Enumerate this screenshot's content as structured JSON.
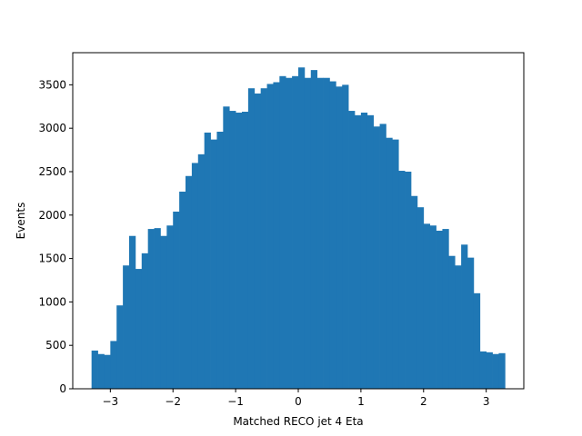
{
  "chart_data": {
    "type": "bar",
    "title": "",
    "xlabel": "Matched RECO jet 4 Eta",
    "ylabel": "Events",
    "xlim": [
      -3.6,
      3.6
    ],
    "ylim": [
      0,
      3870
    ],
    "x_range": [
      -3.3,
      3.3
    ],
    "bar_color": "#1f77b4",
    "grid": false,
    "xticks": [
      -3,
      -2,
      -1,
      0,
      1,
      2,
      3
    ],
    "xtick_labels": [
      "−3",
      "−2",
      "−1",
      "0",
      "1",
      "2",
      "3"
    ],
    "yticks": [
      0,
      500,
      1000,
      1500,
      2000,
      2500,
      3000,
      3500
    ],
    "ytick_labels": [
      "0",
      "500",
      "1000",
      "1500",
      "2000",
      "2500",
      "3000",
      "3500"
    ],
    "values": [
      440,
      400,
      390,
      550,
      960,
      1420,
      1760,
      1380,
      1560,
      1840,
      1850,
      1760,
      1880,
      2040,
      2270,
      2450,
      2600,
      2700,
      2950,
      2870,
      2960,
      3250,
      3200,
      3180,
      3190,
      3460,
      3400,
      3460,
      3510,
      3530,
      3600,
      3580,
      3600,
      3700,
      3580,
      3670,
      3580,
      3580,
      3540,
      3480,
      3500,
      3200,
      3150,
      3180,
      3150,
      3020,
      3050,
      2890,
      2870,
      2510,
      2500,
      2220,
      2090,
      1900,
      1880,
      1820,
      1840,
      1530,
      1420,
      1660,
      1510,
      1100,
      430,
      420,
      400,
      410
    ]
  }
}
